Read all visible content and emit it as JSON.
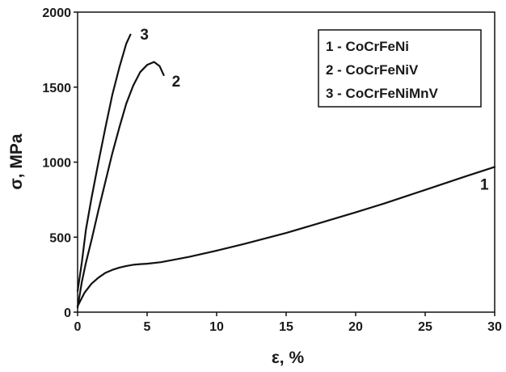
{
  "chart_data": {
    "type": "line",
    "xlabel": "ε, %",
    "ylabel": "σ, MPa",
    "xlim": [
      0,
      30
    ],
    "ylim": [
      0,
      2000
    ],
    "xticks": [
      0,
      5,
      10,
      15,
      20,
      25,
      30
    ],
    "yticks": [
      0,
      500,
      1000,
      1500,
      2000
    ],
    "grid": false,
    "legend": {
      "placement": "top-right",
      "entries": [
        "1 - CoCrFeNi",
        "2 - CoCrFeNiV",
        "3 - CoCrFeNiMnV"
      ]
    },
    "series": [
      {
        "name": "1 - CoCrFeNi",
        "label": "1",
        "color": "#111111",
        "x": [
          0,
          0.5,
          1,
          1.5,
          2,
          2.5,
          3,
          3.5,
          4,
          4.5,
          5,
          6,
          8,
          10,
          12,
          15,
          18,
          20,
          22,
          25,
          28,
          30
        ],
        "y": [
          40,
          130,
          190,
          230,
          262,
          282,
          297,
          308,
          316,
          320,
          323,
          333,
          368,
          410,
          455,
          528,
          610,
          665,
          723,
          815,
          908,
          968
        ]
      },
      {
        "name": "2 - CoCrFeNiV",
        "label": "2",
        "color": "#111111",
        "x": [
          0,
          0.3,
          0.6,
          1,
          1.5,
          2,
          2.5,
          3,
          3.5,
          4,
          4.5,
          5,
          5.5,
          5.9,
          6.2
        ],
        "y": [
          30,
          200,
          330,
          480,
          680,
          870,
          1060,
          1230,
          1390,
          1510,
          1600,
          1648,
          1668,
          1640,
          1580
        ]
      },
      {
        "name": "3 - CoCrFeNiMnV",
        "label": "3",
        "color": "#111111",
        "x": [
          0,
          0.3,
          0.6,
          1,
          1.5,
          2,
          2.5,
          3,
          3.5,
          3.8
        ],
        "y": [
          140,
          330,
          550,
          760,
          1000,
          1230,
          1450,
          1630,
          1790,
          1850
        ]
      }
    ]
  }
}
